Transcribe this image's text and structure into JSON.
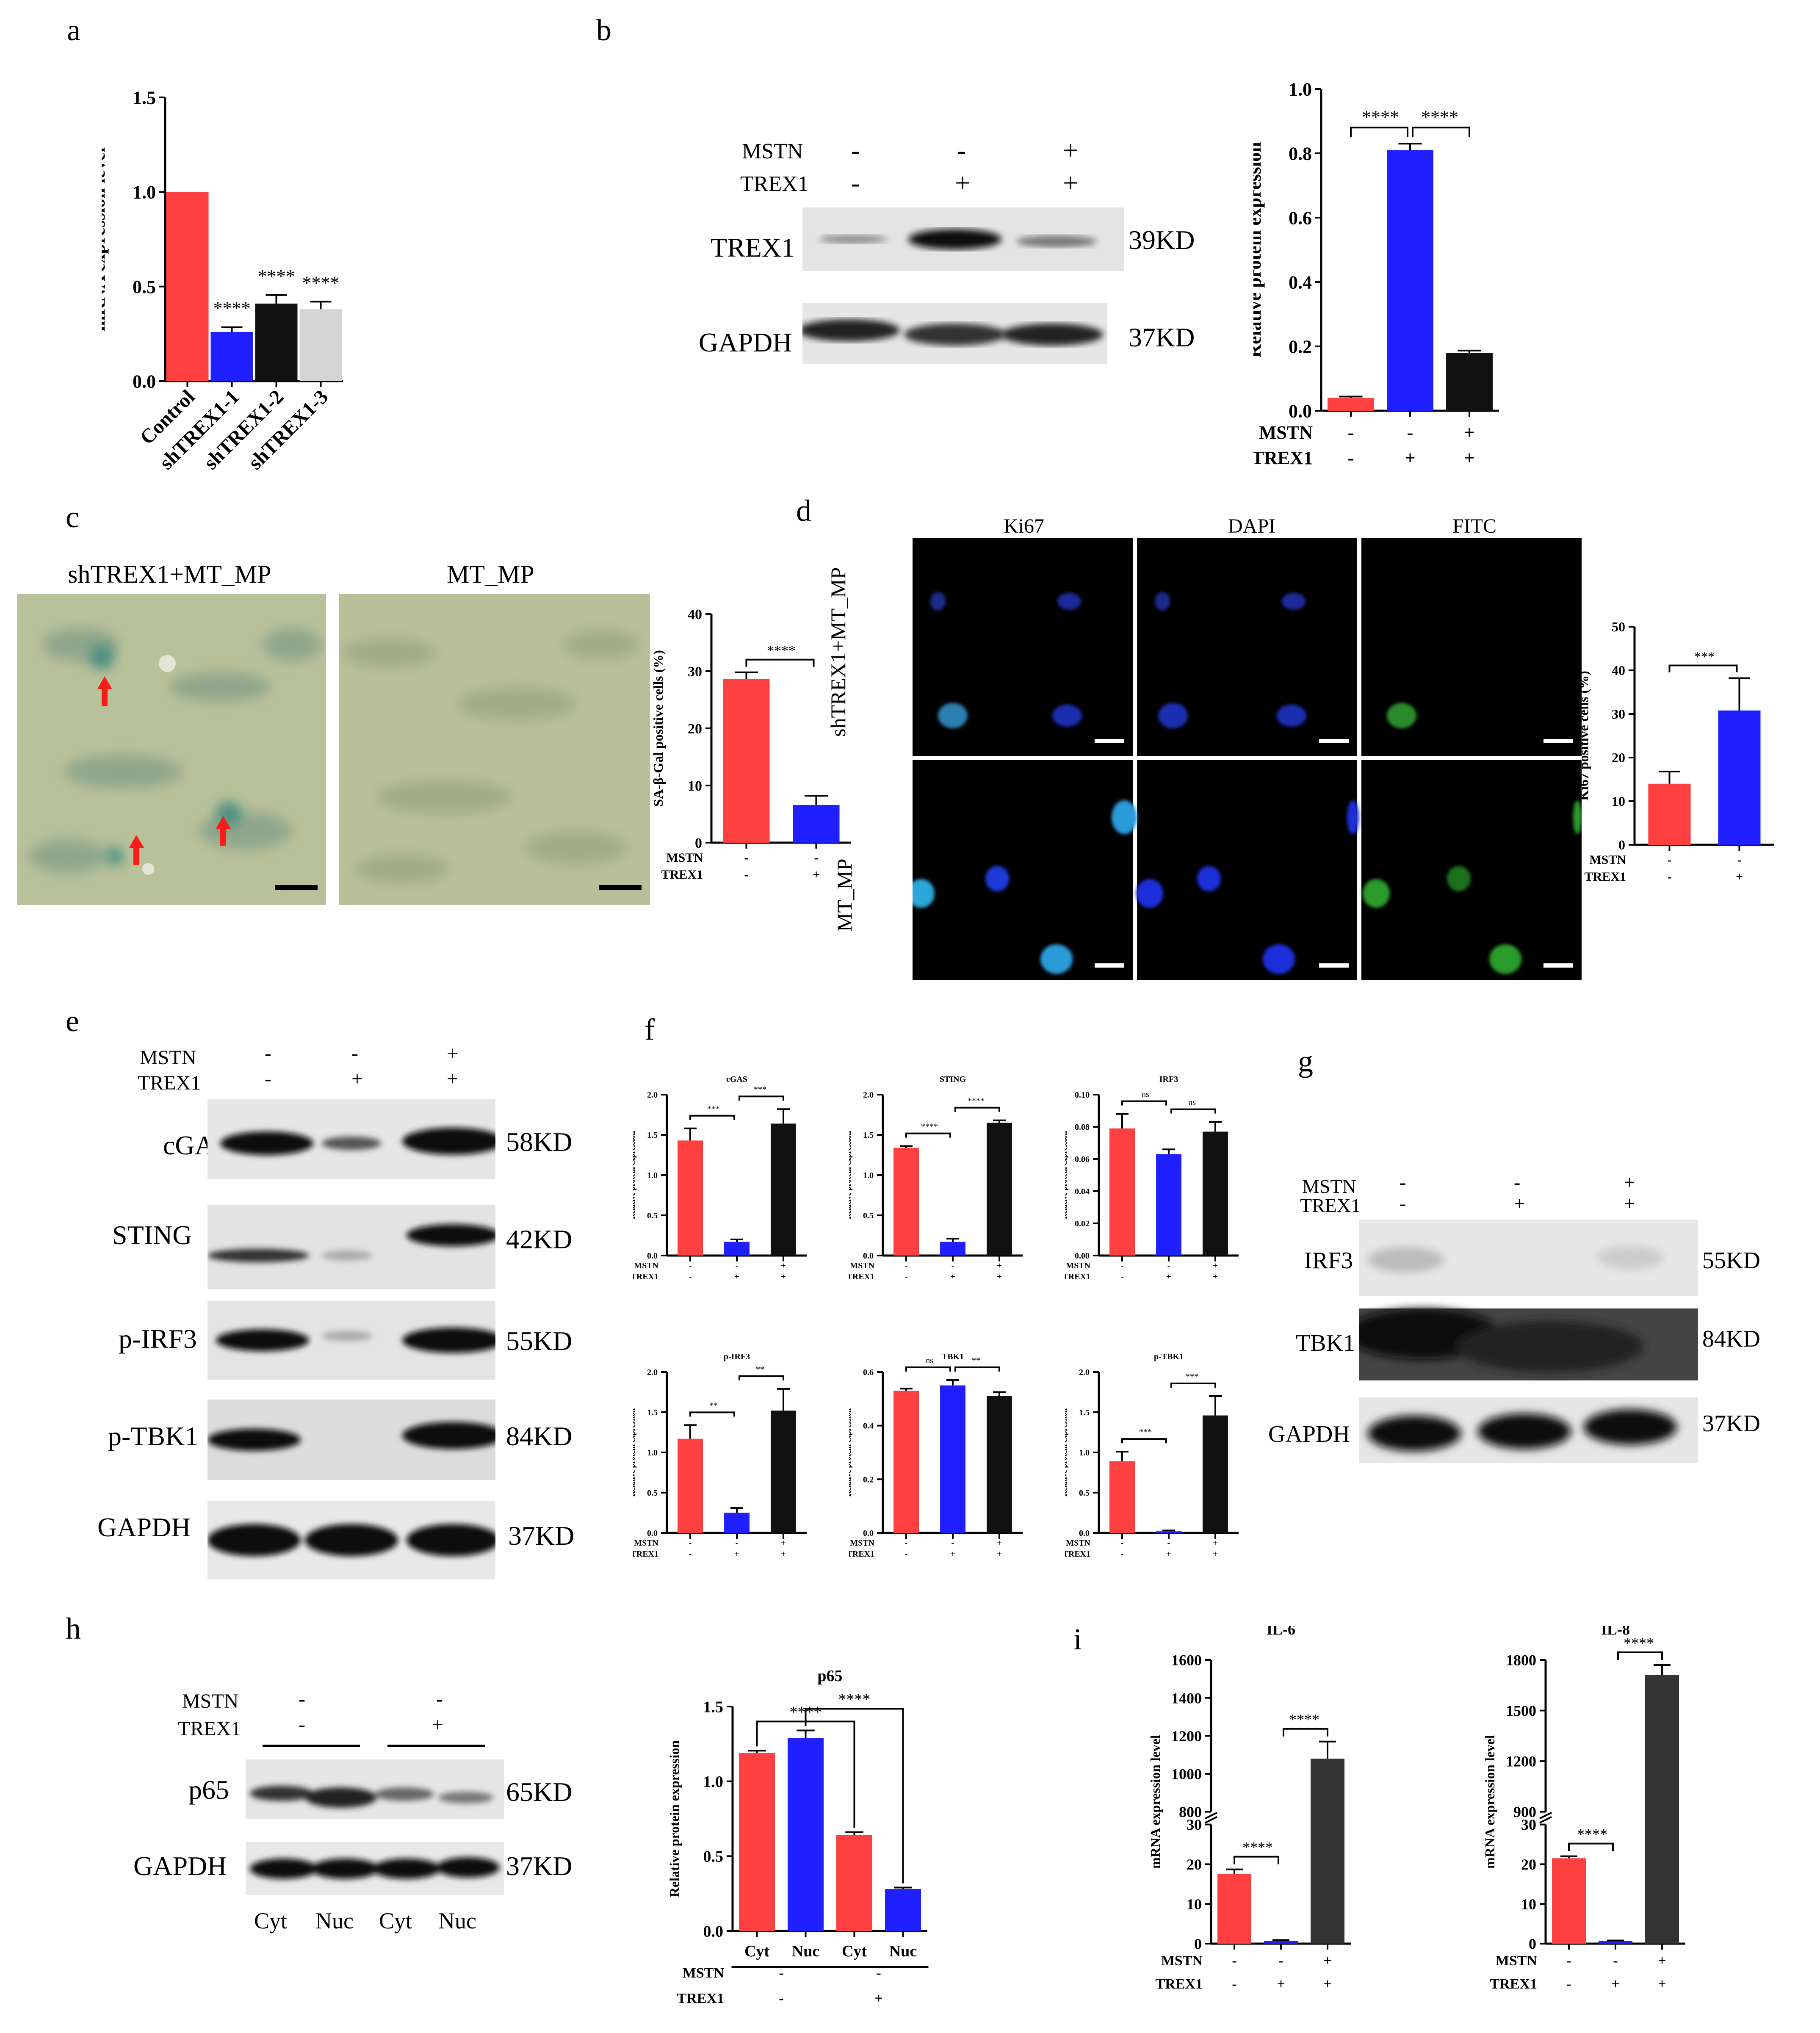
{
  "panel_letters": [
    "a",
    "b",
    "c",
    "d",
    "e",
    "f",
    "g",
    "h",
    "i"
  ],
  "colors": {
    "red": "#ff4040",
    "blue": "#1f1fff",
    "black": "#111111",
    "gray": "#d4d4d4",
    "dark": "#333333",
    "arrow": "#ff1a1a",
    "scalebar": "#000000"
  },
  "panel_b_blot": {
    "row_labels": [
      "MSTN",
      "TREX1"
    ],
    "signs": [
      [
        "-",
        "-",
        "+"
      ],
      [
        "-",
        "+",
        "+"
      ]
    ],
    "bands": [
      {
        "name": "TREX1",
        "kd": "39KD"
      },
      {
        "name": "GAPDH",
        "kd": "37KD"
      }
    ]
  },
  "panel_c": {
    "image_titles": [
      "shTREX1+MT_MP",
      "MT_MP"
    ],
    "arrow_marker": "red arrow"
  },
  "panel_d": {
    "column_titles": [
      "Ki67",
      "DAPI",
      "FITC"
    ],
    "row_titles": [
      "shTREX1+MT_MP",
      "MT_MP"
    ]
  },
  "panel_e_blot": {
    "row_labels": [
      "MSTN",
      "TREX1"
    ],
    "signs": [
      [
        "-",
        "-",
        "+"
      ],
      [
        "-",
        "+",
        "+"
      ]
    ],
    "bands": [
      {
        "name": "cGAS",
        "kd": "58KD"
      },
      {
        "name": "STING",
        "kd": "42KD"
      },
      {
        "name": "p-IRF3",
        "kd": "55KD"
      },
      {
        "name": "p-TBK1",
        "kd": "84KD"
      },
      {
        "name": "GAPDH",
        "kd": "37KD"
      }
    ]
  },
  "panel_g_blot": {
    "row_labels": [
      "MSTN",
      "TREX1"
    ],
    "signs": [
      [
        "-",
        "-",
        "+"
      ],
      [
        "-",
        "+",
        "+"
      ]
    ],
    "bands": [
      {
        "name": "IRF3",
        "kd": "55KD"
      },
      {
        "name": "TBK1",
        "kd": "84KD"
      },
      {
        "name": "GAPDH",
        "kd": "37KD"
      }
    ]
  },
  "panel_h_blot": {
    "row_labels": [
      "MSTN",
      "TREX1"
    ],
    "signs": [
      [
        "-",
        "-"
      ],
      [
        "-",
        "+"
      ]
    ],
    "bands": [
      {
        "name": "p65",
        "kd": "65KD"
      },
      {
        "name": "GAPDH",
        "kd": "37KD"
      }
    ],
    "lanes": [
      "Cyt",
      "Nuc",
      "Cyt",
      "Nuc"
    ]
  },
  "chart_data": [
    {
      "id": "a",
      "type": "bar",
      "title": "",
      "ylabel": "mRNA expression level",
      "categories": [
        "Control",
        "shTREX1-1",
        "shTREX1-2",
        "shTREX1-3"
      ],
      "values": [
        1.0,
        0.26,
        0.41,
        0.38
      ],
      "errors": [
        0,
        0.025,
        0.045,
        0.04
      ],
      "colors": [
        "#ff4040",
        "#1f1fff",
        "#111111",
        "#d4d4d4"
      ],
      "ylim": [
        0,
        1.5
      ],
      "yticks": [
        "0.0",
        "0.5",
        "1.0",
        "1.5"
      ],
      "sig": [
        "",
        "****",
        "****",
        "****"
      ]
    },
    {
      "id": "b",
      "type": "bar",
      "title": "",
      "ylabel": "Relative protein expression",
      "categories": [
        "1",
        "2",
        "3"
      ],
      "values": [
        0.04,
        0.81,
        0.18
      ],
      "errors": [
        0.004,
        0.02,
        0.007
      ],
      "colors": [
        "#ff4040",
        "#1f1fff",
        "#111111"
      ],
      "ylim": [
        0,
        1.0
      ],
      "yticks": [
        "0.0",
        "0.2",
        "0.4",
        "0.6",
        "0.8",
        "1.0"
      ],
      "group_rows": [
        {
          "label": "MSTN",
          "signs": [
            "-",
            "-",
            "+"
          ]
        },
        {
          "label": "TREX1",
          "signs": [
            "-",
            "+",
            "+"
          ]
        }
      ],
      "brackets": [
        {
          "from": 0,
          "to": 1,
          "label": "****"
        },
        {
          "from": 1,
          "to": 2,
          "label": "****"
        }
      ]
    },
    {
      "id": "c",
      "type": "bar",
      "title": "",
      "ylabel": "SA-β-Gal positive cells (%)",
      "categories": [
        "1",
        "2"
      ],
      "values": [
        28.6,
        6.6
      ],
      "errors": [
        1.2,
        1.6
      ],
      "colors": [
        "#ff4040",
        "#1f1fff"
      ],
      "ylim": [
        0,
        40
      ],
      "yticks": [
        "0",
        "10",
        "20",
        "30",
        "40"
      ],
      "group_rows": [
        {
          "label": "MSTN",
          "signs": [
            "-",
            "-"
          ]
        },
        {
          "label": "TREX1",
          "signs": [
            "-",
            "+"
          ]
        }
      ],
      "brackets": [
        {
          "from": 0,
          "to": 1,
          "label": "****"
        }
      ]
    },
    {
      "id": "d",
      "type": "bar",
      "title": "",
      "ylabel": "Ki67 positive cells (%)",
      "categories": [
        "1",
        "2"
      ],
      "values": [
        14,
        30.8
      ],
      "errors": [
        2.8,
        7.4
      ],
      "colors": [
        "#ff4040",
        "#1f1fff"
      ],
      "ylim": [
        0,
        50
      ],
      "yticks": [
        "0",
        "10",
        "20",
        "30",
        "40",
        "50"
      ],
      "group_rows": [
        {
          "label": "MSTN",
          "signs": [
            "-",
            "-"
          ]
        },
        {
          "label": "TREX1",
          "signs": [
            "-",
            "+"
          ]
        }
      ],
      "brackets": [
        {
          "from": 0,
          "to": 1,
          "label": "***"
        }
      ]
    },
    {
      "id": "f1",
      "type": "bar",
      "title": "cGAS",
      "ylabel": "Relative protein expression",
      "categories": [
        "1",
        "2",
        "3"
      ],
      "values": [
        1.43,
        0.17,
        1.64
      ],
      "errors": [
        0.15,
        0.03,
        0.18
      ],
      "colors": [
        "#ff4040",
        "#1f1fff",
        "#111111"
      ],
      "ylim": [
        0,
        2.0
      ],
      "yticks": [
        "0.0",
        "0.5",
        "1.0",
        "1.5",
        "2.0"
      ],
      "group_rows": [
        {
          "label": "MSTN",
          "signs": [
            "-",
            "-",
            "+"
          ]
        },
        {
          "label": "TREX1",
          "signs": [
            "-",
            "+",
            "+"
          ]
        }
      ],
      "brackets": [
        {
          "from": 0,
          "to": 1,
          "label": "***"
        },
        {
          "from": 1,
          "to": 2,
          "label": "***"
        }
      ]
    },
    {
      "id": "f2",
      "type": "bar",
      "title": "STING",
      "ylabel": "Relative protein expression",
      "categories": [
        "1",
        "2",
        "3"
      ],
      "values": [
        1.34,
        0.17,
        1.65
      ],
      "errors": [
        0.02,
        0.04,
        0.03
      ],
      "colors": [
        "#ff4040",
        "#1f1fff",
        "#111111"
      ],
      "ylim": [
        0,
        2.0
      ],
      "yticks": [
        "0.0",
        "0.5",
        "1.0",
        "1.5",
        "2.0"
      ],
      "group_rows": [
        {
          "label": "MSTN",
          "signs": [
            "-",
            "-",
            "+"
          ]
        },
        {
          "label": "TREX1",
          "signs": [
            "-",
            "+",
            "+"
          ]
        }
      ],
      "brackets": [
        {
          "from": 0,
          "to": 1,
          "label": "****"
        },
        {
          "from": 1,
          "to": 2,
          "label": "****"
        }
      ]
    },
    {
      "id": "f3",
      "type": "bar",
      "title": "IRF3",
      "ylabel": "Relative protein expression",
      "categories": [
        "1",
        "2",
        "3"
      ],
      "values": [
        0.079,
        0.063,
        0.077
      ],
      "errors": [
        0.009,
        0.003,
        0.006
      ],
      "colors": [
        "#ff4040",
        "#1f1fff",
        "#111111"
      ],
      "ylim": [
        0,
        0.1
      ],
      "yticks": [
        "0.00",
        "0.02",
        "0.04",
        "0.06",
        "0.08",
        "0.10"
      ],
      "group_rows": [
        {
          "label": "MSTN",
          "signs": [
            "-",
            "-",
            "+"
          ]
        },
        {
          "label": "TREX1",
          "signs": [
            "-",
            "+",
            "+"
          ]
        }
      ],
      "brackets": [
        {
          "from": 0,
          "to": 1,
          "label": "ns"
        },
        {
          "from": 1,
          "to": 2,
          "label": "ns"
        }
      ]
    },
    {
      "id": "f4",
      "type": "bar",
      "title": "p-IRF3",
      "ylabel": "Relative protein expression",
      "categories": [
        "1",
        "2",
        "3"
      ],
      "values": [
        1.17,
        0.25,
        1.52
      ],
      "errors": [
        0.17,
        0.06,
        0.27
      ],
      "colors": [
        "#ff4040",
        "#1f1fff",
        "#111111"
      ],
      "ylim": [
        0,
        2.0
      ],
      "yticks": [
        "0.0",
        "0.5",
        "1.0",
        "1.5",
        "2.0"
      ],
      "group_rows": [
        {
          "label": "MSTN",
          "signs": [
            "-",
            "-",
            "+"
          ]
        },
        {
          "label": "TREX1",
          "signs": [
            "-",
            "+",
            "+"
          ]
        }
      ],
      "brackets": [
        {
          "from": 0,
          "to": 1,
          "label": "**"
        },
        {
          "from": 1,
          "to": 2,
          "label": "**"
        }
      ]
    },
    {
      "id": "f5",
      "type": "bar",
      "title": "TBK1",
      "ylabel": "Relative protein expression",
      "categories": [
        "1",
        "2",
        "3"
      ],
      "values": [
        0.53,
        0.55,
        0.51
      ],
      "errors": [
        0.008,
        0.02,
        0.015
      ],
      "colors": [
        "#ff4040",
        "#1f1fff",
        "#111111"
      ],
      "ylim": [
        0,
        0.6
      ],
      "yticks": [
        "0.0",
        "0.2",
        "0.4",
        "0.6"
      ],
      "group_rows": [
        {
          "label": "MSTN",
          "signs": [
            "-",
            "-",
            "+"
          ]
        },
        {
          "label": "TREX1",
          "signs": [
            "-",
            "+",
            "+"
          ]
        }
      ],
      "brackets": [
        {
          "from": 0,
          "to": 1,
          "label": "ns"
        },
        {
          "from": 1,
          "to": 2,
          "label": "**"
        }
      ]
    },
    {
      "id": "f6",
      "type": "bar",
      "title": "p-TBK1",
      "ylabel": "Relative protein expression",
      "categories": [
        "1",
        "2",
        "3"
      ],
      "values": [
        0.89,
        0.02,
        1.46
      ],
      "errors": [
        0.12,
        0.01,
        0.24
      ],
      "colors": [
        "#ff4040",
        "#1f1fff",
        "#111111"
      ],
      "ylim": [
        0,
        2.0
      ],
      "yticks": [
        "0.0",
        "0.5",
        "1.0",
        "1.5",
        "2.0"
      ],
      "group_rows": [
        {
          "label": "MSTN",
          "signs": [
            "-",
            "-",
            "+"
          ]
        },
        {
          "label": "TREX1",
          "signs": [
            "-",
            "+",
            "+"
          ]
        }
      ],
      "brackets": [
        {
          "from": 0,
          "to": 1,
          "label": "***"
        },
        {
          "from": 1,
          "to": 2,
          "label": "***"
        }
      ]
    },
    {
      "id": "h",
      "type": "bar",
      "title": "p65",
      "ylabel": "Relative protein expression",
      "categories": [
        "Cyt",
        "Nuc",
        "Cyt",
        "Nuc"
      ],
      "values": [
        1.19,
        1.29,
        0.64,
        0.28
      ],
      "errors": [
        0.015,
        0.05,
        0.02,
        0.01
      ],
      "colors": [
        "#ff4040",
        "#1f1fff",
        "#ff4040",
        "#1f1fff"
      ],
      "ylim": [
        0,
        1.5
      ],
      "yticks": [
        "0.0",
        "0.5",
        "1.0",
        "1.5"
      ],
      "group_rows": [
        {
          "label": "MSTN",
          "signs": [
            "-",
            "-"
          ]
        },
        {
          "label": "TREX1",
          "signs": [
            "-",
            "+"
          ]
        }
      ],
      "brackets": [
        {
          "from": 0,
          "to": 2,
          "label": "****"
        },
        {
          "from": 1,
          "to": 3,
          "label": "****"
        }
      ]
    },
    {
      "id": "i1",
      "type": "bar",
      "title": "IL-6",
      "ylabel": "mRNA expression level",
      "categories": [
        "1",
        "2",
        "3"
      ],
      "values": [
        17.5,
        0.7,
        1080
      ],
      "errors": [
        1.2,
        0.2,
        90
      ],
      "colors": [
        "#ff4040",
        "#1f1fff",
        "#333333"
      ],
      "axis_break": true,
      "yticks_lower": [
        "0",
        "10",
        "20",
        "30"
      ],
      "yticks_upper": [
        "800",
        "1000",
        "1200",
        "1400",
        "1600"
      ],
      "group_rows": [
        {
          "label": "MSTN",
          "signs": [
            "-",
            "-",
            "+"
          ]
        },
        {
          "label": "TREX1",
          "signs": [
            "-",
            "+",
            "+"
          ]
        }
      ],
      "brackets": [
        {
          "from": 0,
          "to": 1,
          "label": "****"
        },
        {
          "from": 1,
          "to": 2,
          "label": "****"
        }
      ]
    },
    {
      "id": "i2",
      "type": "bar",
      "title": "IL-8",
      "ylabel": "mRNA expression level",
      "categories": [
        "1",
        "2",
        "3"
      ],
      "values": [
        21.5,
        0.7,
        1710
      ],
      "errors": [
        0.5,
        0.1,
        60
      ],
      "colors": [
        "#ff4040",
        "#1f1fff",
        "#333333"
      ],
      "axis_break": true,
      "yticks_lower": [
        "0",
        "10",
        "20",
        "30"
      ],
      "yticks_upper": [
        "900",
        "1200",
        "1500",
        "1800"
      ],
      "group_rows": [
        {
          "label": "MSTN",
          "signs": [
            "-",
            "-",
            "+"
          ]
        },
        {
          "label": "TREX1",
          "signs": [
            "-",
            "+",
            "+"
          ]
        }
      ],
      "brackets": [
        {
          "from": 0,
          "to": 1,
          "label": "****"
        },
        {
          "from": 1,
          "to": 2,
          "label": "****"
        }
      ]
    }
  ]
}
